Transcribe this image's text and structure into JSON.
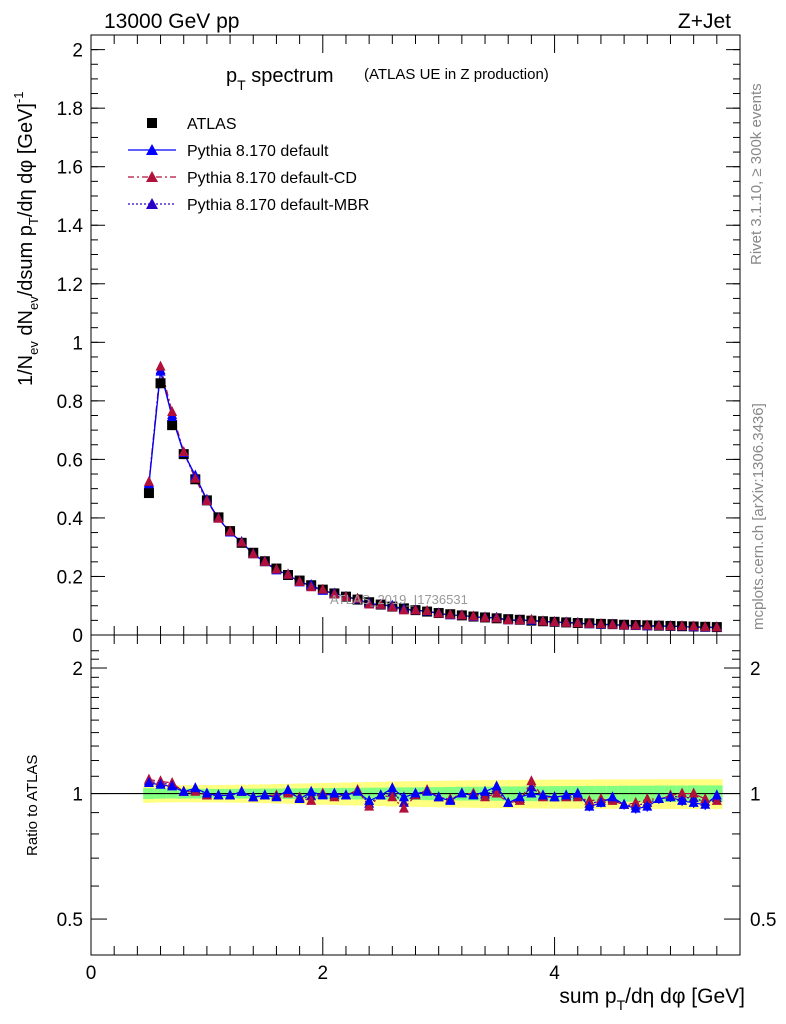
{
  "header": {
    "left": "13000 GeV pp",
    "right": "Z+Jet"
  },
  "side_text": {
    "rivet": "Rivet 3.1.10, ≥ 300k events",
    "mcplots": "mcplots.cern.ch [arXiv:1306.3436]"
  },
  "watermark": "ATLAS_2019_I1736531",
  "colors": {
    "data": "#000000",
    "default": "#0000ff",
    "cd": "#b0103a",
    "mbr": "#2a00c8",
    "band_inner": "#80ff80",
    "band_outer": "#ffff80"
  },
  "chart_data": [
    {
      "type": "scatter",
      "panel": "main",
      "title_main": "p",
      "title_sub": "T",
      "title_word": "spectrum",
      "title_extra": "(ATLAS UE in Z production)",
      "ylabel": "1/N_ev dN_ev/dsum p_T/dη dφ [GeV]^-1",
      "ylabel_parts": [
        "1/N",
        "ev",
        " dN",
        "ev",
        "/dsum p",
        "T",
        "/dη dφ  [GeV]",
        "-1"
      ],
      "xlim": [
        0,
        5.6
      ],
      "ylim": [
        0,
        2.05
      ],
      "y_ticks": [
        "0",
        "0.2",
        "0.4",
        "0.6",
        "0.8",
        "1",
        "1.2",
        "1.4",
        "1.6",
        "1.8",
        "2"
      ],
      "legend": [
        "ATLAS",
        "Pythia 8.170 default",
        "Pythia 8.170 default-CD",
        "Pythia 8.170 default-MBR"
      ],
      "x": [
        0.5,
        0.6,
        0.7,
        0.8,
        0.9,
        1.0,
        1.1,
        1.2,
        1.3,
        1.4,
        1.5,
        1.6,
        1.7,
        1.8,
        1.9,
        2.0,
        2.1,
        2.2,
        2.3,
        2.4,
        2.5,
        2.6,
        2.7,
        2.8,
        2.9,
        3.0,
        3.1,
        3.2,
        3.3,
        3.4,
        3.5,
        3.6,
        3.7,
        3.8,
        3.9,
        4.0,
        4.1,
        4.2,
        4.3,
        4.4,
        4.5,
        4.6,
        4.7,
        4.8,
        4.9,
        5.0,
        5.1,
        5.2,
        5.3,
        5.4
      ],
      "series": [
        {
          "name": "ATLAS",
          "values": [
            0.485,
            0.86,
            0.717,
            0.618,
            0.532,
            0.46,
            0.402,
            0.355,
            0.315,
            0.281,
            0.252,
            0.227,
            0.205,
            0.186,
            0.17,
            0.155,
            0.142,
            0.131,
            0.121,
            0.112,
            0.104,
            0.097,
            0.091,
            0.085,
            0.08,
            0.075,
            0.071,
            0.067,
            0.063,
            0.06,
            0.057,
            0.054,
            0.052,
            0.049,
            0.047,
            0.045,
            0.043,
            0.041,
            0.04,
            0.038,
            0.037,
            0.035,
            0.034,
            0.033,
            0.032,
            0.031,
            0.03,
            0.029,
            0.028,
            0.027
          ]
        },
        {
          "name": "Pythia 8.170 default",
          "values": [
            0.515,
            0.9,
            0.745,
            0.622,
            0.545,
            0.462,
            0.398,
            0.35,
            0.318,
            0.276,
            0.25,
            0.221,
            0.207,
            0.18,
            0.171,
            0.151,
            0.142,
            0.13,
            0.122,
            0.108,
            0.103,
            0.1,
            0.089,
            0.085,
            0.081,
            0.074,
            0.068,
            0.067,
            0.062,
            0.06,
            0.059,
            0.051,
            0.051,
            0.049,
            0.046,
            0.044,
            0.043,
            0.041,
            0.037,
            0.036,
            0.036,
            0.033,
            0.031,
            0.03,
            0.031,
            0.03,
            0.029,
            0.027,
            0.026,
            0.027
          ]
        },
        {
          "name": "Pythia 8.170 default-CD",
          "values": [
            0.523,
            0.917,
            0.762,
            0.625,
            0.534,
            0.458,
            0.397,
            0.353,
            0.316,
            0.276,
            0.25,
            0.224,
            0.206,
            0.181,
            0.163,
            0.155,
            0.139,
            0.13,
            0.124,
            0.104,
            0.103,
            0.095,
            0.084,
            0.084,
            0.082,
            0.073,
            0.069,
            0.067,
            0.063,
            0.059,
            0.057,
            0.051,
            0.05,
            0.052,
            0.046,
            0.044,
            0.042,
            0.04,
            0.038,
            0.037,
            0.035,
            0.033,
            0.032,
            0.032,
            0.031,
            0.03,
            0.03,
            0.029,
            0.027,
            0.026
          ]
        },
        {
          "name": "Pythia 8.170 default-MBR",
          "values": [
            0.519,
            0.905,
            0.752,
            0.624,
            0.54,
            0.46,
            0.398,
            0.352,
            0.317,
            0.277,
            0.251,
            0.222,
            0.206,
            0.182,
            0.167,
            0.153,
            0.141,
            0.13,
            0.123,
            0.106,
            0.103,
            0.098,
            0.087,
            0.084,
            0.081,
            0.074,
            0.068,
            0.067,
            0.062,
            0.06,
            0.058,
            0.051,
            0.05,
            0.05,
            0.046,
            0.044,
            0.042,
            0.041,
            0.038,
            0.036,
            0.035,
            0.033,
            0.032,
            0.031,
            0.031,
            0.03,
            0.029,
            0.028,
            0.026,
            0.026
          ]
        }
      ]
    },
    {
      "type": "line",
      "panel": "ratio",
      "ylabel": "Ratio to ATLAS",
      "xlabel_parts": [
        "sum p",
        "T",
        "/dη dφ [GeV]"
      ],
      "xlim": [
        0,
        5.6
      ],
      "ylim": [
        0.41,
        2.4
      ],
      "log_y": true,
      "y_ticks": [
        "0.5",
        "1",
        "2"
      ],
      "x_ticks": [
        "0",
        "2",
        "4"
      ],
      "band_inner_halfwidth": [
        0.03,
        0.028,
        0.027,
        0.027,
        0.027,
        0.026,
        0.026,
        0.026,
        0.027,
        0.027,
        0.028,
        0.028,
        0.029,
        0.029,
        0.03,
        0.03,
        0.031,
        0.032,
        0.032,
        0.033,
        0.033,
        0.034,
        0.035,
        0.035,
        0.036,
        0.036,
        0.037,
        0.038,
        0.038,
        0.039,
        0.039,
        0.04,
        0.04,
        0.041,
        0.041,
        0.042,
        0.042,
        0.042,
        0.043,
        0.043,
        0.043,
        0.044,
        0.044,
        0.044,
        0.045,
        0.045,
        0.045,
        0.046,
        0.046,
        0.046
      ],
      "band_outer_halfwidth": [
        0.05,
        0.048,
        0.047,
        0.047,
        0.047,
        0.048,
        0.048,
        0.049,
        0.05,
        0.051,
        0.052,
        0.054,
        0.055,
        0.057,
        0.058,
        0.06,
        0.061,
        0.063,
        0.064,
        0.066,
        0.067,
        0.069,
        0.07,
        0.071,
        0.072,
        0.073,
        0.074,
        0.075,
        0.076,
        0.077,
        0.077,
        0.078,
        0.078,
        0.079,
        0.079,
        0.08,
        0.08,
        0.08,
        0.08,
        0.081,
        0.081,
        0.081,
        0.081,
        0.082,
        0.082,
        0.082,
        0.082,
        0.082,
        0.082,
        0.082
      ],
      "series": [
        {
          "name": "Pythia 8.170 default",
          "values": [
            1.06,
            1.05,
            1.04,
            1.01,
            1.03,
            1.0,
            0.99,
            0.99,
            1.01,
            0.98,
            0.99,
            0.98,
            1.02,
            0.97,
            1.01,
            0.99,
            1.0,
            0.99,
            1.01,
            0.96,
            0.99,
            1.03,
            0.98,
            1.0,
            1.01,
            0.98,
            0.96,
            1.0,
            0.99,
            1.01,
            1.04,
            0.95,
            0.98,
            1.0,
            0.99,
            0.98,
            0.99,
            1.0,
            0.93,
            0.95,
            0.98,
            0.94,
            0.92,
            0.93,
            0.97,
            0.98,
            0.96,
            0.95,
            0.94,
            0.99
          ]
        },
        {
          "name": "Pythia 8.170 default-CD",
          "values": [
            1.08,
            1.07,
            1.06,
            1.01,
            1.01,
            0.99,
            0.99,
            0.99,
            1.01,
            0.98,
            0.99,
            0.99,
            1.0,
            0.98,
            0.96,
            1.0,
            0.98,
            0.99,
            1.02,
            0.93,
            0.99,
            0.98,
            0.92,
            0.99,
            1.02,
            0.98,
            0.97,
            1.0,
            1.0,
            0.98,
            1.0,
            0.95,
            0.96,
            1.07,
            0.98,
            0.98,
            0.98,
            0.98,
            0.96,
            0.97,
            0.96,
            0.94,
            0.95,
            0.97,
            0.97,
            0.99,
            1.0,
            1.0,
            0.97,
            0.96
          ]
        },
        {
          "name": "Pythia 8.170 default-MBR",
          "values": [
            1.07,
            1.06,
            1.05,
            1.01,
            1.02,
            0.99,
            0.99,
            0.99,
            1.01,
            0.98,
            0.99,
            0.985,
            1.01,
            0.975,
            0.985,
            0.995,
            0.99,
            0.99,
            1.015,
            0.945,
            0.99,
            1.005,
            0.95,
            0.995,
            1.015,
            0.98,
            0.965,
            1.0,
            0.995,
            0.995,
            1.02,
            0.95,
            0.97,
            1.035,
            0.985,
            0.98,
            0.985,
            0.99,
            0.945,
            0.96,
            0.97,
            0.94,
            0.935,
            0.95,
            0.97,
            0.985,
            0.98,
            0.975,
            0.955,
            0.975
          ]
        }
      ]
    }
  ]
}
